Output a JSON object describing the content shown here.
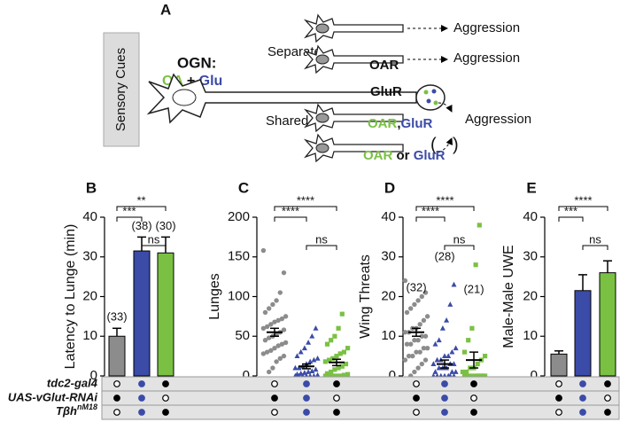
{
  "panel_a": {
    "label": "A",
    "sensory": "Sensory Cues",
    "ogn": "OGN:",
    "oa": "OA",
    "plus": "+",
    "glu": "Glu",
    "separate": "Separate",
    "oar1": "OAR",
    "agg1": "Aggression",
    "glur1": "GluR",
    "agg2": "Aggression",
    "shared": "Shared",
    "shared_oar": "OAR",
    "comma": ",",
    "shared_glur": "GluR",
    "agg3": "Aggression",
    "oar2": "OAR",
    "or": "or",
    "glur2": "GluR",
    "paren_open": "(",
    "paren_close": ")",
    "colors": {
      "oa": "#7ac143",
      "glu": "#3b4ba8"
    }
  },
  "chart_data": [
    {
      "type": "bar",
      "label": "B",
      "ylabel": "Latency to Lunge (min)",
      "ylim": [
        0,
        40
      ],
      "yticks": [
        0,
        10,
        20,
        30,
        40
      ],
      "groups": [
        {
          "color": "#8c8c8c",
          "value": 10,
          "error": 2,
          "n_label": "(33)"
        },
        {
          "color": "#3b4ba8",
          "value": 31.5,
          "error": 3.5,
          "n_label": "(38)"
        },
        {
          "color": "#7ac143",
          "value": 31,
          "error": 4,
          "n_label": "(30)"
        }
      ],
      "comparisons": [
        {
          "groups": [
            0,
            2
          ],
          "label": "**"
        },
        {
          "groups": [
            0,
            1
          ],
          "label": "***"
        },
        {
          "groups": [
            1,
            2
          ],
          "label": "ns"
        }
      ]
    },
    {
      "type": "strip",
      "label": "C",
      "ylabel": "Lunges",
      "ylim": [
        0,
        200
      ],
      "yticks": [
        0,
        50,
        100,
        150,
        200
      ],
      "groups": [
        {
          "color": "#8c8c8c",
          "marker": "circle",
          "mean": 55,
          "sem": 5,
          "points": [
            158,
            130,
            105,
            95,
            90,
            85,
            80,
            75,
            72,
            70,
            68,
            65,
            62,
            60,
            58,
            55,
            52,
            50,
            48,
            45,
            42,
            40,
            38,
            35,
            32,
            30,
            28,
            25,
            22,
            18,
            10,
            5
          ]
        },
        {
          "color": "#3b4ba8",
          "marker": "triangle",
          "mean": 12,
          "sem": 3,
          "points": [
            60,
            50,
            42,
            35,
            30,
            25,
            22,
            20,
            18,
            15,
            12,
            10,
            10,
            8,
            6,
            5,
            4,
            3,
            2,
            1,
            0,
            0,
            0,
            0,
            0,
            0
          ]
        },
        {
          "color": "#7ac143",
          "marker": "square",
          "mean": 17,
          "sem": 4,
          "points": [
            78,
            60,
            50,
            45,
            40,
            35,
            30,
            28,
            25,
            22,
            20,
            18,
            15,
            12,
            10,
            8,
            5,
            3,
            2,
            1,
            0,
            0,
            0,
            0,
            0
          ]
        }
      ],
      "comparisons": [
        {
          "groups": [
            0,
            2
          ],
          "label": "****"
        },
        {
          "groups": [
            0,
            1
          ],
          "label": "****"
        },
        {
          "groups": [
            1,
            2
          ],
          "label": "ns"
        }
      ]
    },
    {
      "type": "strip",
      "label": "D",
      "ylabel": "Wing Threats",
      "ylim": [
        0,
        40
      ],
      "yticks": [
        0,
        10,
        20,
        30,
        40
      ],
      "groups": [
        {
          "color": "#8c8c8c",
          "marker": "circle",
          "mean": 11,
          "sem": 1,
          "n_label": "(32)",
          "points": [
            24,
            21,
            20,
            19,
            18,
            17,
            16,
            15,
            14,
            13,
            12,
            12,
            11,
            11,
            10,
            10,
            9,
            9,
            8,
            8,
            7,
            7,
            6,
            6,
            5,
            5,
            4,
            4,
            3,
            2,
            1,
            0
          ]
        },
        {
          "color": "#3b4ba8",
          "marker": "triangle",
          "mean": 3,
          "sem": 1,
          "n_label": "(28)",
          "points": [
            23,
            18,
            14,
            12,
            9,
            8,
            7,
            6,
            5,
            5,
            4,
            4,
            3,
            3,
            3,
            2,
            2,
            2,
            1,
            1,
            1,
            0,
            0,
            0,
            0,
            0,
            0,
            0
          ]
        },
        {
          "color": "#7ac143",
          "marker": "square",
          "mean": 4,
          "sem": 2,
          "n_label": "(21)",
          "points": [
            38,
            28,
            12,
            9,
            6,
            5,
            4,
            3,
            2,
            2,
            1,
            1,
            0,
            0,
            0,
            0,
            0,
            0,
            0,
            0,
            0
          ]
        }
      ],
      "comparisons": [
        {
          "groups": [
            0,
            2
          ],
          "label": "****"
        },
        {
          "groups": [
            0,
            1
          ],
          "label": "****"
        },
        {
          "groups": [
            1,
            2
          ],
          "label": "ns"
        }
      ]
    },
    {
      "type": "bar",
      "label": "E",
      "ylabel": "Male-Male UWE",
      "ylim": [
        0,
        40
      ],
      "yticks": [
        0,
        10,
        20,
        30,
        40
      ],
      "groups": [
        {
          "color": "#8c8c8c",
          "value": 5.5,
          "error": 0.8
        },
        {
          "color": "#3b4ba8",
          "value": 21.5,
          "error": 4
        },
        {
          "color": "#7ac143",
          "value": 26,
          "error": 3
        }
      ],
      "comparisons": [
        {
          "groups": [
            0,
            2
          ],
          "label": "****"
        },
        {
          "groups": [
            0,
            1
          ],
          "label": "***"
        },
        {
          "groups": [
            1,
            2
          ],
          "label": "ns"
        }
      ]
    }
  ],
  "genotypes": {
    "fill_colors": [
      "#000000",
      "#3b4ba8",
      "#000000"
    ],
    "rows": [
      {
        "label": "tdc2-gal4",
        "present": [
          false,
          true,
          true
        ]
      },
      {
        "label": "UAS-vGlut-RNAi",
        "present": [
          true,
          true,
          false
        ]
      },
      {
        "label": "Tβh",
        "superscript": "nM18",
        "present": [
          false,
          true,
          true
        ]
      }
    ]
  }
}
